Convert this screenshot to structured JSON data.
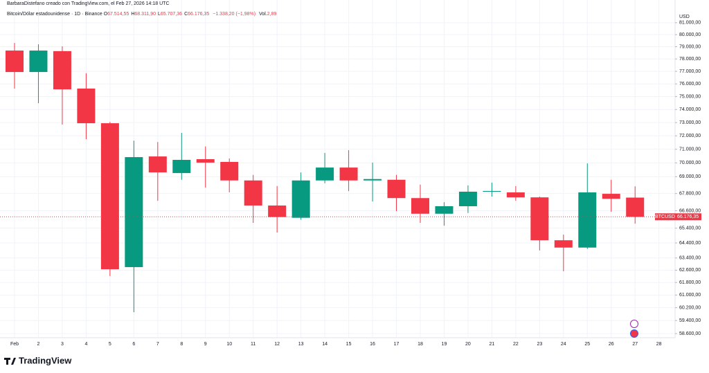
{
  "header": {
    "credit": "BarbaraDistefano creado con TradingView.com, el Feb 27, 2026 14:18 UTC",
    "symbol": "Bitcoin/Dólar estadounidense · 1D · Binance",
    "ohlc": [
      {
        "key": "O",
        "value": "67.514,55"
      },
      {
        "key": "H",
        "value": "68.311,90"
      },
      {
        "key": "L",
        "value": "65.707,36"
      },
      {
        "key": "C",
        "value": "66.176,35"
      }
    ],
    "change": "−1.338,20 (−1,98%)",
    "volume_key": "Vol.",
    "volume": "2,89"
  },
  "footer": {
    "brand": "TradingView"
  },
  "chart_data": {
    "type": "candlestick",
    "currency": "USD",
    "log_scale": true,
    "grid": true,
    "up_color": "#089981",
    "down_color": "#f23645",
    "categories": [
      "Feb",
      "2",
      "3",
      "4",
      "5",
      "6",
      "7",
      "8",
      "9",
      "10",
      "11",
      "12",
      "13",
      "14",
      "15",
      "16",
      "17",
      "18",
      "19",
      "20",
      "21",
      "22",
      "23",
      "24",
      "25",
      "26",
      "27",
      "28"
    ],
    "open": [
      78685,
      76946,
      78640,
      75630,
      72950,
      62800,
      70470,
      69260,
      70270,
      70070,
      68730,
      66960,
      66110,
      68730,
      69660,
      68730,
      68780,
      67480,
      66390,
      66910,
      67930,
      67880,
      67530,
      64580,
      64090,
      67780,
      67514.55,
      null
    ],
    "high": [
      79311,
      79200,
      79030,
      76850,
      73050,
      71640,
      71540,
      72220,
      71210,
      70320,
      69130,
      68330,
      69310,
      70730,
      70930,
      70020,
      69130,
      68430,
      67190,
      68380,
      68580,
      68330,
      67580,
      64960,
      69960,
      68780,
      68311.9,
      null
    ],
    "low": [
      75627,
      74490,
      72850,
      71750,
      62220,
      59920,
      67290,
      68780,
      68230,
      67890,
      65760,
      65100,
      65970,
      68530,
      67970,
      67240,
      66570,
      65760,
      65570,
      66440,
      67580,
      67290,
      63900,
      62530,
      64000,
      66520,
      65707.36,
      null
    ],
    "close": [
      76946,
      78685,
      75570,
      72950,
      62660,
      70420,
      69310,
      70220,
      70020,
      68730,
      66960,
      66160,
      68730,
      69660,
      68730,
      68830,
      67480,
      66390,
      66910,
      67930,
      67980,
      67530,
      64580,
      64090,
      67880,
      67430,
      66176.35,
      null
    ],
    "ylim": [
      58390,
      81870
    ],
    "yticks": [
      {
        "value": 81000,
        "label": "81.000,00"
      },
      {
        "value": 80000,
        "label": "80.000,00"
      },
      {
        "value": 79000,
        "label": "79.000,00"
      },
      {
        "value": 78000,
        "label": "78.000,00"
      },
      {
        "value": 77000,
        "label": "77.000,00"
      },
      {
        "value": 76000,
        "label": "76.000,00"
      },
      {
        "value": 75000,
        "label": "75.000,00"
      },
      {
        "value": 74000,
        "label": "74.000,00"
      },
      {
        "value": 73000,
        "label": "73.000,00"
      },
      {
        "value": 72000,
        "label": "72.000,00"
      },
      {
        "value": 71000,
        "label": "71.000,00"
      },
      {
        "value": 70000,
        "label": "70.000,00"
      },
      {
        "value": 69000,
        "label": "69.000,00"
      },
      {
        "value": 67800,
        "label": "67.800,00"
      },
      {
        "value": 66600,
        "label": "66.600,00"
      },
      {
        "value": 65400,
        "label": "65.400,00"
      },
      {
        "value": 64400,
        "label": "64.400,00"
      },
      {
        "value": 63400,
        "label": "63.400,00"
      },
      {
        "value": 62600,
        "label": "62.600,00"
      },
      {
        "value": 61800,
        "label": "61.800,00"
      },
      {
        "value": 61000,
        "label": "61.000,00"
      },
      {
        "value": 60200,
        "label": "60.200,00"
      },
      {
        "value": 59400,
        "label": "59.400,00"
      },
      {
        "value": 58600,
        "label": "58.600,00"
      }
    ],
    "price_line": {
      "name": "BTCUSD",
      "value": 66176.35,
      "label": "66.176,35"
    }
  }
}
